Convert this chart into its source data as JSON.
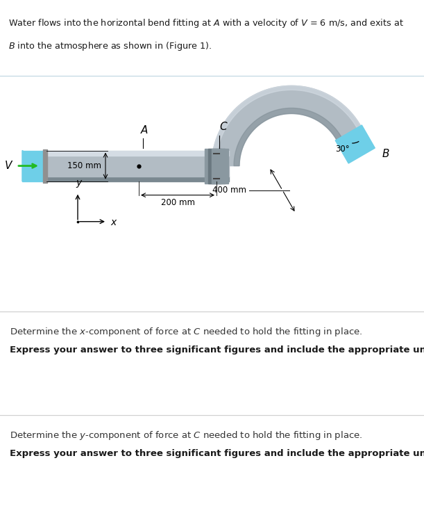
{
  "bg_color_top": "#deeef5",
  "bg_color_bottom": "#ffffff",
  "header_line1": "Water flows into the horizontal bend fitting at $A$ with a velocity of $V$ = 6 m/s, and exits at",
  "header_line2": "$B$ into the atmosphere as shown in (Figure 1).",
  "label_A": "A",
  "label_B": "B",
  "label_C": "C",
  "label_V": "V",
  "label_x": "x",
  "label_y": "y",
  "dim_150": "150 mm",
  "dim_200": "200 mm",
  "dim_400": "400 mm",
  "angle_label": "30°",
  "q1_line1": "Determine the $x$-component of force at $C$ needed to hold the fitting in place.",
  "q1_line2": "Express your answer to three significant figures and include the appropriate units.",
  "q2_line1": "Determine the $y$-component of force at $C$ needed to hold the fitting in place.",
  "q2_line2": "Express your answer to three significant figures and include the appropriate units.",
  "pipe_color": "#b2bcc4",
  "pipe_light": "#d4dce4",
  "pipe_dark": "#7a8890",
  "water_color": "#6ecfe8",
  "flange_dark": "#6a7880",
  "flange_mid": "#8a98a0",
  "arrow_green": "#22bb22",
  "divider_color": "#aac8d8",
  "section_line": "#d0d0d0"
}
